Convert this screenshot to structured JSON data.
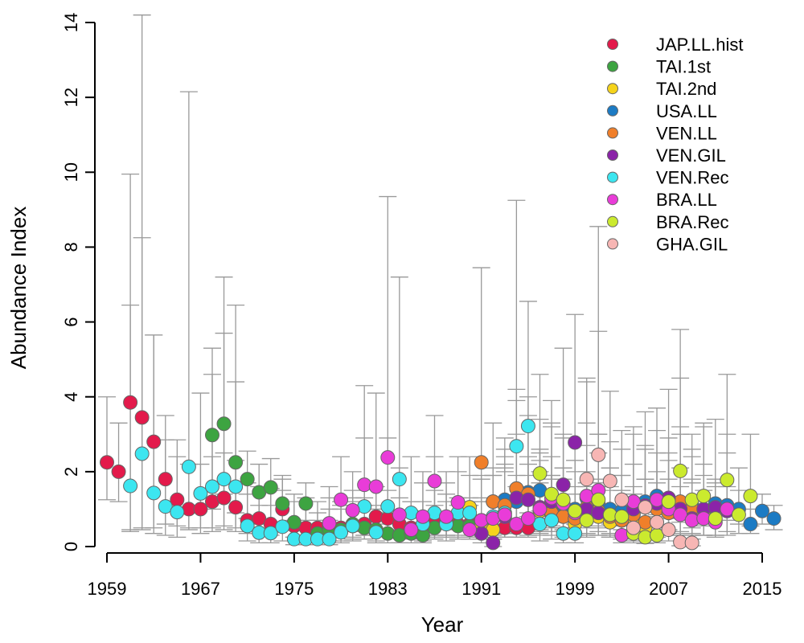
{
  "chart_data": {
    "type": "scatter",
    "title": "",
    "xlabel": "Year",
    "ylabel": "Abundance Index",
    "xlim": [
      1958,
      2016.5
    ],
    "ylim": [
      0,
      14
    ],
    "x_ticks": [
      1959,
      1967,
      1975,
      1983,
      1991,
      1999,
      2007,
      2015
    ],
    "y_ticks": [
      0,
      2,
      4,
      6,
      8,
      10,
      12,
      14
    ],
    "grid": false,
    "legend_position": "top-right",
    "error_bars": "vertical with caps",
    "series": [
      {
        "name": "JAP.LL.hist",
        "color": "#E31A4B",
        "x": [
          1959,
          1960,
          1961,
          1962,
          1963,
          1964,
          1965,
          1966,
          1967,
          1968,
          1969,
          1970,
          1971,
          1972,
          1973,
          1974,
          1975,
          1976,
          1977,
          1978,
          1979,
          1980,
          1981,
          1982,
          1983,
          1984,
          1985,
          1986,
          1987,
          1988,
          1989,
          1990,
          1991,
          1992,
          1993,
          1994,
          1995
        ],
        "y": [
          2.25,
          2.0,
          3.85,
          3.45,
          2.8,
          1.8,
          1.25,
          1.0,
          1.0,
          1.2,
          1.3,
          1.05,
          0.7,
          0.75,
          0.6,
          1.0,
          0.55,
          0.5,
          0.5,
          0.55,
          0.5,
          0.55,
          0.6,
          0.8,
          0.75,
          0.6,
          0.5,
          0.55,
          0.7,
          0.65,
          0.6,
          0.6,
          0.5,
          0.45,
          0.5,
          0.5,
          0.5
        ],
        "upper": [
          4.0,
          3.3,
          9.95,
          8.25,
          5.65,
          2.85,
          2.4,
          2.2,
          2.2,
          2.4,
          2.5,
          2.3,
          1.7,
          1.6,
          1.55,
          1.8,
          1.4,
          1.3,
          1.2,
          1.3,
          1.2,
          1.3,
          1.3,
          1.6,
          1.5,
          1.3,
          1.2,
          1.2,
          1.5,
          1.4,
          1.3,
          1.3,
          1.2,
          1.2,
          1.2,
          1.2,
          1.2
        ],
        "lower": [
          1.25,
          1.2,
          0.45,
          0.45,
          0.5,
          0.6,
          0.55,
          0.45,
          0.5,
          0.5,
          0.55,
          0.5,
          0.35,
          0.35,
          0.3,
          0.45,
          0.25,
          0.25,
          0.25,
          0.25,
          0.25,
          0.25,
          0.3,
          0.35,
          0.35,
          0.3,
          0.25,
          0.25,
          0.3,
          0.3,
          0.3,
          0.3,
          0.25,
          0.2,
          0.25,
          0.25,
          0.25
        ]
      },
      {
        "name": "TAI.1st",
        "color": "#3DA441",
        "x": [
          1968,
          1969,
          1970,
          1971,
          1972,
          1973,
          1974,
          1975,
          1976,
          1977,
          1978,
          1979,
          1980,
          1981,
          1982,
          1983,
          1984,
          1985,
          1986,
          1987,
          1988,
          1989,
          1990
        ],
        "y": [
          2.98,
          3.28,
          2.25,
          1.8,
          1.45,
          1.58,
          1.15,
          0.65,
          1.15,
          0.35,
          0.45,
          0.45,
          0.6,
          0.5,
          0.45,
          0.35,
          0.3,
          0.35,
          0.3,
          0.5,
          0.6,
          0.55,
          0.55
        ],
        "upper": [
          5.3,
          7.2,
          6.45,
          2.55,
          2.2,
          2.35,
          1.9,
          1.2,
          1.7,
          0.9,
          1.0,
          1.0,
          1.2,
          1.1,
          1.0,
          0.9,
          0.85,
          0.95,
          0.85,
          1.1,
          1.2,
          1.1,
          1.1
        ],
        "lower": [
          1.0,
          1.4,
          0.9,
          0.75,
          0.6,
          0.65,
          0.45,
          0.25,
          0.45,
          0.1,
          0.15,
          0.15,
          0.2,
          0.2,
          0.15,
          0.1,
          0.1,
          0.1,
          0.1,
          0.2,
          0.25,
          0.2,
          0.2
        ]
      },
      {
        "name": "TAI.2nd",
        "color": "#F5D31B",
        "x": [
          1990,
          1991,
          1992,
          1993,
          1994,
          1995,
          1996,
          1997,
          1998,
          1999,
          2000,
          2001,
          2002,
          2003,
          2004,
          2005
        ],
        "y": [
          1.05,
          0.55,
          0.45,
          1.1,
          1.55,
          1.25,
          0.95,
          0.85,
          1.0,
          0.6,
          0.75,
          0.8,
          0.65,
          0.7,
          0.6,
          0.5
        ],
        "upper": [
          1.9,
          1.3,
          1.2,
          2.2,
          3.0,
          2.4,
          2.0,
          1.8,
          2.1,
          1.4,
          1.6,
          1.7,
          1.5,
          1.5,
          1.4,
          1.2
        ],
        "lower": [
          0.5,
          0.25,
          0.2,
          0.55,
          0.7,
          0.6,
          0.45,
          0.4,
          0.5,
          0.3,
          0.35,
          0.4,
          0.3,
          0.35,
          0.3,
          0.25
        ]
      },
      {
        "name": "USA.LL",
        "color": "#1C7BC4",
        "x": [
          1992,
          1993,
          1994,
          1995,
          1996,
          1997,
          1998,
          1999,
          2000,
          2001,
          2002,
          2003,
          2004,
          2005,
          2006,
          2007,
          2008,
          2009,
          2010,
          2011,
          2012,
          2013,
          2014,
          2015,
          2016
        ],
        "y": [
          1.2,
          1.25,
          1.2,
          1.45,
          1.5,
          1.2,
          1.1,
          1.0,
          1.3,
          1.15,
          1.0,
          0.95,
          1.05,
          1.2,
          1.35,
          1.2,
          1.05,
          1.1,
          0.95,
          1.15,
          1.1,
          1.0,
          0.6,
          0.95,
          0.75
        ],
        "upper": [
          1.9,
          2.0,
          1.9,
          2.2,
          2.3,
          1.9,
          1.8,
          1.6,
          2.0,
          1.8,
          1.6,
          1.5,
          1.6,
          1.8,
          2.0,
          1.8,
          1.6,
          1.7,
          1.5,
          1.7,
          1.6,
          1.5,
          1.0,
          1.4,
          1.1
        ],
        "lower": [
          0.7,
          0.75,
          0.7,
          0.9,
          0.95,
          0.7,
          0.65,
          0.6,
          0.8,
          0.7,
          0.6,
          0.55,
          0.65,
          0.75,
          0.85,
          0.75,
          0.65,
          0.7,
          0.6,
          0.7,
          0.7,
          0.6,
          0.35,
          0.6,
          0.45
        ]
      },
      {
        "name": "VEN.LL",
        "color": "#F07F2A",
        "x": [
          1991,
          1992,
          1993,
          1994,
          1995,
          1996,
          1997,
          1998,
          1999,
          2000,
          2001,
          2002,
          2003,
          2004,
          2005,
          2006,
          2007,
          2008,
          2009,
          2010
        ],
        "y": [
          2.25,
          1.2,
          1.1,
          1.55,
          1.4,
          1.0,
          0.9,
          0.8,
          0.75,
          1.05,
          0.95,
          0.8,
          0.7,
          0.85,
          0.65,
          1.0,
          0.9,
          1.2,
          1.0,
          0.85
        ],
        "upper": [
          7.45,
          3.3,
          2.9,
          3.9,
          3.5,
          2.6,
          2.4,
          2.1,
          2.0,
          2.7,
          2.5,
          2.1,
          1.9,
          2.2,
          1.8,
          2.5,
          2.3,
          3.0,
          2.6,
          2.2
        ],
        "lower": [
          0.7,
          0.4,
          0.35,
          0.5,
          0.45,
          0.3,
          0.3,
          0.25,
          0.25,
          0.35,
          0.3,
          0.25,
          0.2,
          0.3,
          0.2,
          0.35,
          0.3,
          0.4,
          0.35,
          0.3
        ]
      },
      {
        "name": "VEN.GIL",
        "color": "#8B23A8",
        "x": [
          1991,
          1992,
          1993,
          1994,
          1995,
          1996,
          1997,
          1998,
          1999,
          2000,
          2001,
          2002,
          2003,
          2004,
          2005,
          2006,
          2007,
          2008,
          2009,
          2010,
          2011,
          2012
        ],
        "y": [
          0.35,
          0.1,
          0.8,
          1.3,
          1.25,
          1.05,
          1.2,
          1.65,
          2.78,
          1.0,
          0.9,
          0.85,
          0.8,
          1.0,
          1.1,
          1.15,
          1.3,
          1.0,
          0.75,
          1.0,
          1.05,
          0.95
        ],
        "upper": [
          1.2,
          0.6,
          2.6,
          4.2,
          4.0,
          3.4,
          3.9,
          5.3,
          6.2,
          3.3,
          3.0,
          2.8,
          2.6,
          3.2,
          3.6,
          3.7,
          4.2,
          3.2,
          2.4,
          3.2,
          3.4,
          3.0
        ],
        "lower": [
          0.1,
          0.0,
          0.25,
          0.4,
          0.4,
          0.35,
          0.4,
          0.5,
          0.85,
          0.3,
          0.3,
          0.25,
          0.25,
          0.3,
          0.35,
          0.35,
          0.4,
          0.3,
          0.2,
          0.3,
          0.3,
          0.3
        ]
      },
      {
        "name": "VEN.Rec",
        "color": "#3CE6F0",
        "x": [
          1961,
          1962,
          1963,
          1964,
          1965,
          1966,
          1967,
          1968,
          1969,
          1970,
          1971,
          1972,
          1973,
          1974,
          1975,
          1976,
          1977,
          1978,
          1979,
          1980,
          1981,
          1982,
          1983,
          1984,
          1985,
          1986,
          1987,
          1988,
          1989,
          1990,
          1991,
          1992,
          1993,
          1994,
          1995,
          1996,
          1997,
          1998,
          1999
        ],
        "y": [
          1.62,
          2.48,
          1.43,
          1.07,
          0.92,
          2.13,
          1.42,
          1.6,
          1.8,
          1.6,
          0.55,
          0.37,
          0.36,
          0.53,
          0.2,
          0.2,
          0.2,
          0.2,
          0.38,
          0.55,
          1.07,
          0.38,
          1.07,
          1.8,
          0.9,
          0.6,
          0.9,
          0.6,
          0.9,
          0.9,
          0.7,
          0.8,
          0.9,
          2.68,
          3.22,
          0.6,
          0.7,
          0.35,
          0.35
        ],
        "upper": [
          6.45,
          14.2,
          5.65,
          3.5,
          2.85,
          12.15,
          4.1,
          4.6,
          5.7,
          4.4,
          1.4,
          1.1,
          1.1,
          1.5,
          0.7,
          0.7,
          0.7,
          0.7,
          1.1,
          1.5,
          2.9,
          1.1,
          2.9,
          7.2,
          2.4,
          1.7,
          2.4,
          1.7,
          2.4,
          2.4,
          1.9,
          2.1,
          2.4,
          9.25,
          6.55,
          1.7,
          1.9,
          1.1,
          1.1
        ],
        "lower": [
          0.4,
          0.5,
          0.35,
          0.3,
          0.25,
          0.5,
          0.35,
          0.4,
          0.45,
          0.4,
          0.15,
          0.1,
          0.1,
          0.15,
          0.05,
          0.05,
          0.05,
          0.05,
          0.1,
          0.15,
          0.3,
          0.1,
          0.3,
          0.45,
          0.25,
          0.15,
          0.25,
          0.15,
          0.25,
          0.25,
          0.2,
          0.2,
          0.25,
          0.65,
          0.8,
          0.15,
          0.2,
          0.1,
          0.1
        ]
      },
      {
        "name": "BRA.LL",
        "color": "#E93CD8",
        "x": [
          1978,
          1979,
          1980,
          1981,
          1982,
          1983,
          1984,
          1985,
          1986,
          1987,
          1988,
          1989,
          1990,
          1991,
          1992,
          1993,
          1994,
          1995,
          1996,
          1997,
          1998,
          1999,
          2000,
          2001,
          2002,
          2003,
          2004,
          2005,
          2006,
          2007,
          2008,
          2009,
          2010,
          2011,
          2012
        ],
        "y": [
          0.62,
          1.25,
          0.97,
          1.65,
          1.6,
          2.38,
          0.85,
          0.45,
          0.8,
          1.75,
          0.8,
          1.18,
          0.45,
          0.7,
          0.75,
          0.85,
          0.6,
          0.75,
          1.0,
          1.3,
          1.15,
          0.9,
          1.35,
          1.5,
          0.85,
          0.3,
          1.2,
          1.05,
          1.25,
          1.0,
          0.85,
          0.7,
          0.75,
          0.65,
          1.0
        ],
        "upper": [
          1.6,
          2.4,
          2.0,
          4.3,
          4.1,
          9.35,
          2.1,
          1.2,
          2.0,
          3.5,
          2.0,
          2.0,
          1.2,
          1.8,
          1.9,
          2.1,
          1.6,
          1.9,
          2.5,
          3.2,
          2.9,
          2.3,
          4.4,
          5.75,
          2.1,
          0.8,
          3.0,
          2.6,
          3.1,
          2.5,
          2.1,
          1.8,
          1.9,
          1.6,
          2.5
        ],
        "lower": [
          0.25,
          0.5,
          0.4,
          0.65,
          0.6,
          0.9,
          0.35,
          0.2,
          0.3,
          0.7,
          0.3,
          0.45,
          0.2,
          0.3,
          0.3,
          0.35,
          0.25,
          0.3,
          0.4,
          0.5,
          0.45,
          0.35,
          0.5,
          0.55,
          0.35,
          0.1,
          0.45,
          0.4,
          0.5,
          0.4,
          0.35,
          0.3,
          0.3,
          0.25,
          0.4
        ]
      },
      {
        "name": "BRA.Rec",
        "color": "#CBEA2E",
        "x": [
          1996,
          1997,
          1998,
          1999,
          2000,
          2001,
          2002,
          2003,
          2004,
          2005,
          2006,
          2007,
          2008,
          2009,
          2010,
          2011,
          2012,
          2013,
          2014
        ],
        "y": [
          1.95,
          1.4,
          1.25,
          0.95,
          0.7,
          1.25,
          0.85,
          0.8,
          0.35,
          0.25,
          0.3,
          1.2,
          2.02,
          1.25,
          1.35,
          0.75,
          1.78,
          0.85,
          1.35
        ],
        "upper": [
          4.6,
          3.3,
          3.0,
          2.3,
          1.7,
          3.0,
          2.1,
          1.9,
          0.9,
          0.7,
          0.8,
          2.9,
          4.5,
          3.0,
          3.3,
          1.8,
          4.6,
          2.1,
          3.0
        ],
        "lower": [
          0.75,
          0.55,
          0.5,
          0.35,
          0.25,
          0.5,
          0.35,
          0.3,
          0.1,
          0.08,
          0.1,
          0.45,
          0.8,
          0.5,
          0.55,
          0.3,
          0.7,
          0.35,
          0.55
        ]
      },
      {
        "name": "GHA.GIL",
        "color": "#F7B6B4",
        "x": [
          2000,
          2001,
          2002,
          2003,
          2004,
          2005,
          2006,
          2007,
          2008,
          2009
        ],
        "y": [
          1.8,
          2.45,
          1.75,
          1.25,
          0.5,
          1.05,
          0.65,
          0.45,
          0.12,
          0.1
        ],
        "upper": [
          4.5,
          8.55,
          4.15,
          3.1,
          1.4,
          2.7,
          1.7,
          1.2,
          5.8,
          0.35
        ],
        "lower": [
          0.7,
          0.95,
          0.65,
          0.45,
          0.15,
          0.4,
          0.25,
          0.15,
          0.02,
          0.02
        ]
      }
    ]
  }
}
